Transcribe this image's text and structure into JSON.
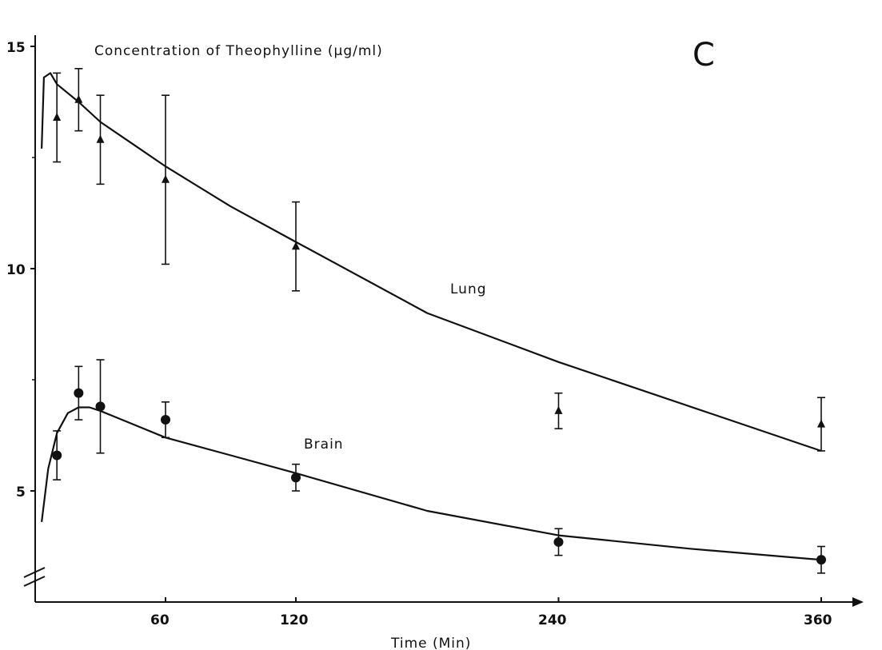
{
  "chart_data": {
    "type": "line",
    "title": "Concentration of Theophylline (µg/ml)",
    "panel_label": "C",
    "xlabel": "Time (Min)",
    "ylabel": "",
    "x_tick_labels": [
      "60",
      "120",
      "240",
      "360"
    ],
    "y_tick_labels": [
      "5",
      "10",
      "15"
    ],
    "x_axis_note": "broken time scale: 0–120 min then 120–360 min compressed",
    "ylim": [
      3.3,
      15
    ],
    "y_axis_break": true,
    "xlim": [
      0,
      390
    ],
    "marker_color": "#111111",
    "series": [
      {
        "name": "Lung",
        "marker": "triangle",
        "points": [
          {
            "x": 10,
            "y": 13.4,
            "err": 1.0
          },
          {
            "x": 20,
            "y": 13.8,
            "err": 0.7
          },
          {
            "x": 30,
            "y": 12.9,
            "err": 1.0
          },
          {
            "x": 60,
            "y": 12.0,
            "err": 1.9
          },
          {
            "x": 120,
            "y": 10.5,
            "err": 1.0
          },
          {
            "x": 240,
            "y": 6.8,
            "err": 0.4
          },
          {
            "x": 360,
            "y": 6.5,
            "err": 0.6
          }
        ],
        "fit": [
          {
            "x": 3,
            "y": 12.7
          },
          {
            "x": 4,
            "y": 14.3
          },
          {
            "x": 7,
            "y": 14.4
          },
          {
            "x": 10,
            "y": 14.15
          },
          {
            "x": 20,
            "y": 13.75
          },
          {
            "x": 30,
            "y": 13.3
          },
          {
            "x": 45,
            "y": 12.8
          },
          {
            "x": 60,
            "y": 12.3
          },
          {
            "x": 90,
            "y": 11.4
          },
          {
            "x": 120,
            "y": 10.6
          },
          {
            "x": 180,
            "y": 9.0
          },
          {
            "x": 240,
            "y": 7.9
          },
          {
            "x": 300,
            "y": 6.9
          },
          {
            "x": 360,
            "y": 5.9
          }
        ]
      },
      {
        "name": "Brain",
        "marker": "circle",
        "points": [
          {
            "x": 10,
            "y": 5.8,
            "err": 0.55
          },
          {
            "x": 20,
            "y": 7.2,
            "err": 0.6
          },
          {
            "x": 30,
            "y": 6.9,
            "err": 1.05
          },
          {
            "x": 60,
            "y": 6.6,
            "err": 0.4
          },
          {
            "x": 120,
            "y": 5.3,
            "err": 0.3
          },
          {
            "x": 240,
            "y": 3.85,
            "err": 0.3
          },
          {
            "x": 360,
            "y": 3.45,
            "err": 0.3
          }
        ],
        "fit": [
          {
            "x": 3,
            "y": 4.3
          },
          {
            "x": 6,
            "y": 5.5
          },
          {
            "x": 10,
            "y": 6.3
          },
          {
            "x": 15,
            "y": 6.75
          },
          {
            "x": 20,
            "y": 6.88
          },
          {
            "x": 25,
            "y": 6.88
          },
          {
            "x": 30,
            "y": 6.8
          },
          {
            "x": 45,
            "y": 6.5
          },
          {
            "x": 60,
            "y": 6.2
          },
          {
            "x": 90,
            "y": 5.8
          },
          {
            "x": 120,
            "y": 5.4
          },
          {
            "x": 180,
            "y": 4.55
          },
          {
            "x": 240,
            "y": 4.0
          },
          {
            "x": 300,
            "y": 3.7
          },
          {
            "x": 360,
            "y": 3.45
          }
        ]
      }
    ]
  }
}
